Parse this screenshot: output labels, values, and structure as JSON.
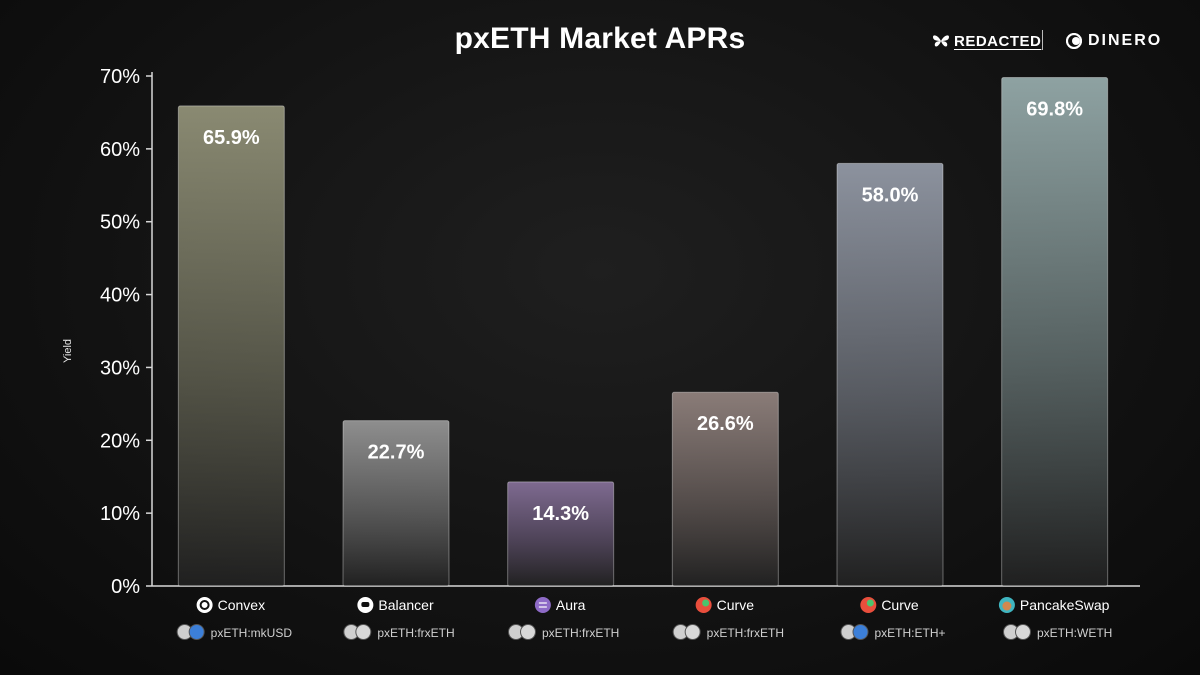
{
  "header": {
    "title": "pxETH Market APRs",
    "brand_left": "REDACTED",
    "brand_right": "DINERO"
  },
  "chart_data": {
    "type": "bar",
    "title": "pxETH Market APRs",
    "xlabel": "",
    "ylabel": "Yield",
    "ylim": [
      0,
      70
    ],
    "yticks": [
      "0%",
      "10%",
      "20%",
      "30%",
      "40%",
      "50%",
      "60%",
      "70%"
    ],
    "grid": false,
    "categories": [
      {
        "protocol": "Convex",
        "pair": "pxETH:mkUSD"
      },
      {
        "protocol": "Balancer",
        "pair": "pxETH:frxETH"
      },
      {
        "protocol": "Aura",
        "pair": "pxETH:frxETH"
      },
      {
        "protocol": "Curve",
        "pair": "pxETH:frxETH"
      },
      {
        "protocol": "Curve",
        "pair": "pxETH:ETH+"
      },
      {
        "protocol": "PancakeSwap",
        "pair": "pxETH:WETH"
      }
    ],
    "values": [
      65.9,
      22.7,
      14.3,
      26.6,
      58.0,
      69.8
    ],
    "value_labels": [
      "65.9%",
      "22.7%",
      "14.3%",
      "26.6%",
      "58.0%",
      "69.8%"
    ],
    "colors": [
      "#8a8a72",
      "#8e8e8e",
      "#7e6a90",
      "#8a7c78",
      "#8c929e",
      "#8ea2a2"
    ],
    "icons": [
      "convex-icon",
      "balancer-icon",
      "aura-icon",
      "curve-icon",
      "curve-icon",
      "pancakeswap-icon"
    ]
  }
}
